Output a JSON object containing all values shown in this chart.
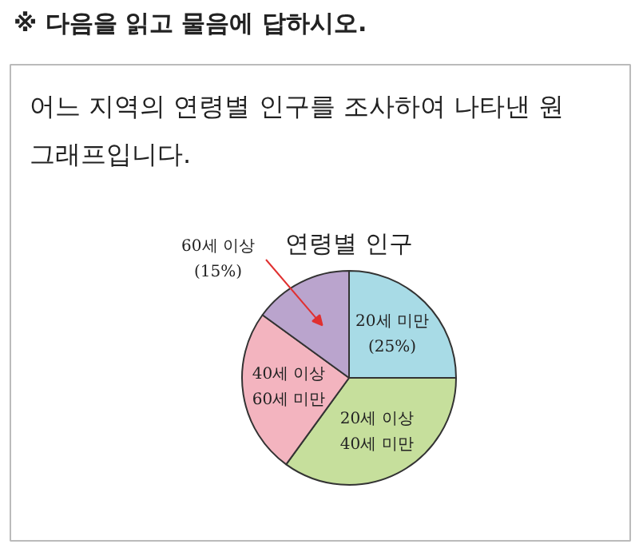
{
  "chart_data": {
    "type": "pie",
    "title": "연령별 인구",
    "annotations": [
      "※ 다음을 읽고 물음에 답하시오.",
      "어느 지역의 연령별 인구를 조사하여 나타낸 원 그래프입니다."
    ],
    "categories": [
      "20세 미만",
      "20세 이상\n40세 미만",
      "40세 이상\n60세 미만",
      "60세 이상"
    ],
    "values": [
      25,
      35,
      25,
      15
    ],
    "value_labels": [
      "(25%)",
      null,
      null,
      "(15%)"
    ],
    "colors": [
      "#a8dbe6",
      "#c6df9c",
      "#f3b4bf",
      "#baa4cd"
    ]
  }
}
